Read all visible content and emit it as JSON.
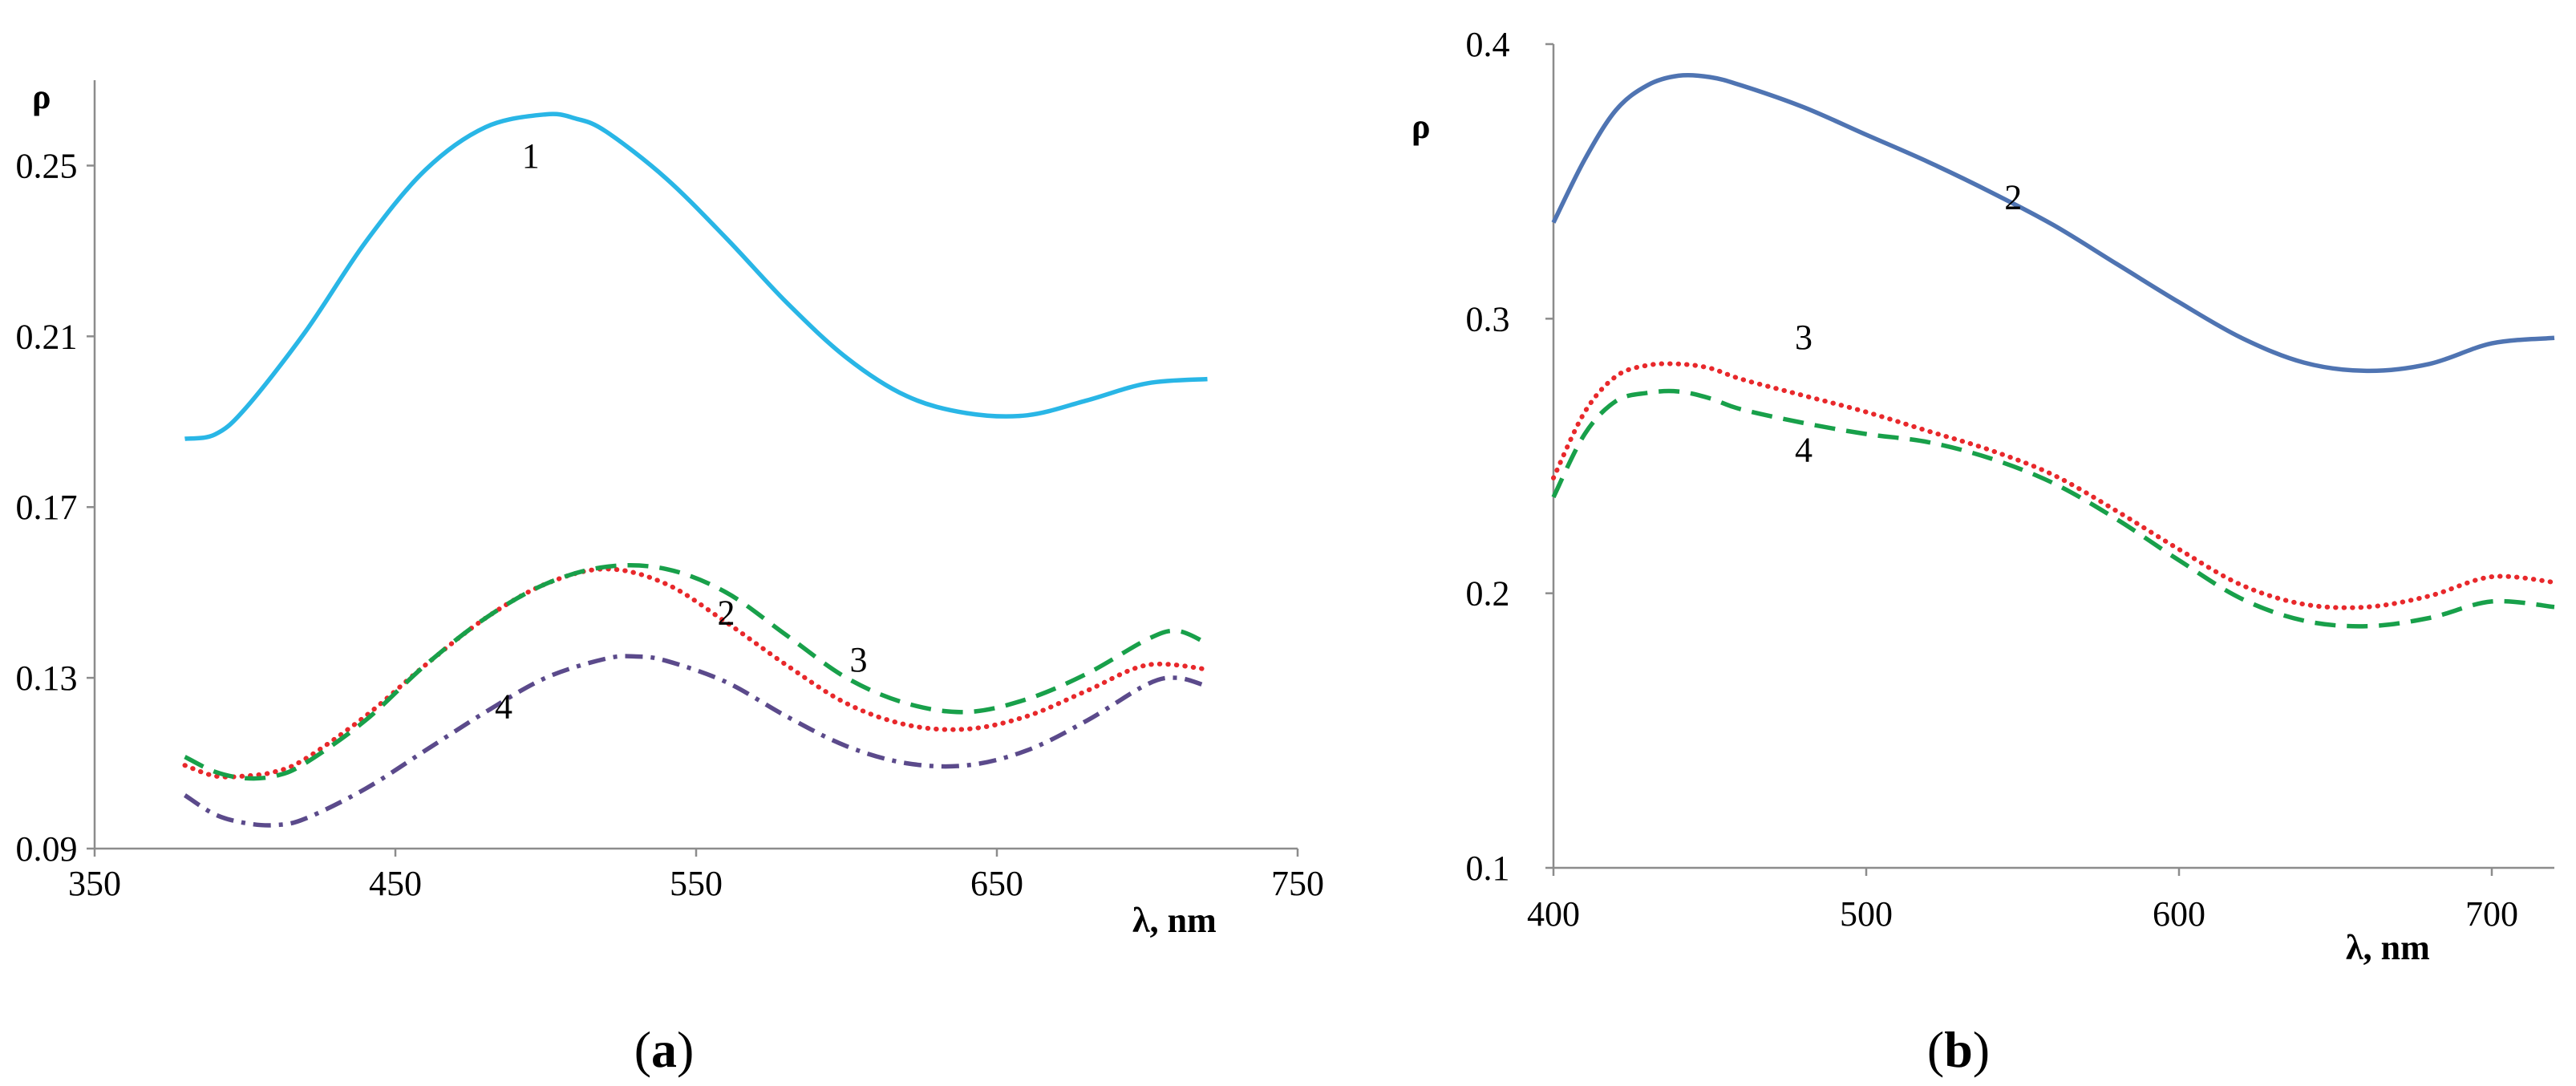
{
  "chart_data": [
    {
      "type": "line",
      "panel_label": "(a)",
      "panel_letter": "a",
      "ylabel": "ρ",
      "xlabel": "λ, nm",
      "xlim": [
        350,
        750
      ],
      "ylim": [
        0.09,
        0.27
      ],
      "xticks": [
        350,
        450,
        550,
        650,
        750
      ],
      "xtick_labels": [
        "350",
        "450",
        "550",
        "650",
        "750"
      ],
      "yticks": [
        0.09,
        0.13,
        0.17,
        0.21,
        0.25
      ],
      "ytick_labels": [
        "0.09",
        "0.13",
        "0.17",
        "0.21",
        "0.25"
      ],
      "grid": false,
      "series": [
        {
          "name": "1",
          "color": "#29b6e6",
          "style": "solid",
          "label_at": [
            495,
            0.2495
          ],
          "x": [
            380,
            390,
            400,
            420,
            440,
            460,
            480,
            500,
            510,
            520,
            540,
            560,
            580,
            600,
            620,
            640,
            660,
            680,
            700,
            720
          ],
          "y": [
            0.186,
            0.187,
            0.193,
            0.211,
            0.232,
            0.249,
            0.259,
            0.262,
            0.261,
            0.258,
            0.247,
            0.233,
            0.218,
            0.205,
            0.196,
            0.192,
            0.1915,
            0.195,
            0.199,
            0.2
          ]
        },
        {
          "name": "2",
          "color": "#e8282b",
          "style": "dotted",
          "label_at": [
            560,
            0.1425
          ],
          "x": [
            380,
            390,
            400,
            410,
            420,
            440,
            460,
            480,
            500,
            520,
            540,
            560,
            580,
            600,
            620,
            640,
            660,
            680,
            700,
            720
          ],
          "y": [
            0.1095,
            0.107,
            0.107,
            0.108,
            0.111,
            0.121,
            0.133,
            0.144,
            0.152,
            0.1555,
            0.152,
            0.143,
            0.133,
            0.124,
            0.119,
            0.118,
            0.121,
            0.127,
            0.133,
            0.132
          ]
        },
        {
          "name": "3",
          "color": "#18a04a",
          "style": "dashed",
          "label_at": [
            604,
            0.1315
          ],
          "x": [
            380,
            390,
            400,
            410,
            420,
            440,
            460,
            480,
            500,
            520,
            540,
            560,
            580,
            600,
            620,
            640,
            660,
            680,
            700,
            710,
            720
          ],
          "y": [
            0.1115,
            0.108,
            0.1065,
            0.107,
            0.11,
            0.12,
            0.133,
            0.144,
            0.152,
            0.156,
            0.1555,
            0.15,
            0.14,
            0.13,
            0.124,
            0.122,
            0.125,
            0.131,
            0.139,
            0.141,
            0.138
          ]
        },
        {
          "name": "4",
          "color": "#5b4a8b",
          "style": "dashdot",
          "label_at": [
            486,
            0.1205
          ],
          "x": [
            380,
            390,
            400,
            410,
            420,
            440,
            460,
            480,
            500,
            520,
            530,
            540,
            560,
            580,
            600,
            620,
            640,
            660,
            680,
            700,
            710,
            720
          ],
          "y": [
            0.1025,
            0.098,
            0.096,
            0.0955,
            0.097,
            0.104,
            0.113,
            0.122,
            0.13,
            0.1345,
            0.135,
            0.134,
            0.129,
            0.121,
            0.114,
            0.11,
            0.1095,
            0.113,
            0.12,
            0.1285,
            0.13,
            0.128
          ]
        }
      ]
    },
    {
      "type": "line",
      "panel_label": "(b)",
      "panel_letter": "b",
      "ylabel": "ρ",
      "xlabel": "λ, nm",
      "xlim": [
        400,
        720
      ],
      "ylim": [
        0.1,
        0.4
      ],
      "xticks": [
        400,
        500,
        600,
        700
      ],
      "xtick_labels": [
        "400",
        "500",
        "600",
        "700"
      ],
      "yticks": [
        0.1,
        0.2,
        0.3,
        0.4
      ],
      "ytick_labels": [
        "0.1",
        "0.2",
        "0.3",
        "0.4"
      ],
      "grid": false,
      "series": [
        {
          "name": "2",
          "color": "#4f74b2",
          "style": "solid",
          "label_at": [
            547,
            0.34
          ],
          "x": [
            400,
            410,
            420,
            430,
            440,
            450,
            460,
            480,
            500,
            520,
            540,
            560,
            580,
            600,
            620,
            640,
            660,
            680,
            700,
            720
          ],
          "y": [
            0.335,
            0.358,
            0.376,
            0.385,
            0.3885,
            0.388,
            0.385,
            0.377,
            0.367,
            0.357,
            0.346,
            0.334,
            0.32,
            0.306,
            0.293,
            0.284,
            0.281,
            0.2835,
            0.291,
            0.293
          ]
        },
        {
          "name": "3",
          "color": "#e8282b",
          "style": "dotted",
          "label_at": [
            480,
            0.289
          ],
          "x": [
            400,
            410,
            420,
            430,
            440,
            450,
            460,
            480,
            500,
            520,
            540,
            560,
            580,
            600,
            620,
            640,
            660,
            680,
            700,
            720
          ],
          "y": [
            0.242,
            0.266,
            0.279,
            0.283,
            0.2835,
            0.282,
            0.278,
            0.272,
            0.266,
            0.259,
            0.252,
            0.243,
            0.23,
            0.216,
            0.203,
            0.196,
            0.195,
            0.199,
            0.206,
            0.204
          ]
        },
        {
          "name": "4",
          "color": "#18a04a",
          "style": "dashed",
          "label_at": [
            480,
            0.248
          ],
          "x": [
            400,
            410,
            420,
            430,
            440,
            450,
            460,
            480,
            500,
            520,
            540,
            560,
            580,
            600,
            620,
            640,
            660,
            680,
            700,
            720
          ],
          "y": [
            0.235,
            0.258,
            0.27,
            0.273,
            0.2735,
            0.271,
            0.267,
            0.262,
            0.258,
            0.255,
            0.249,
            0.24,
            0.227,
            0.212,
            0.198,
            0.19,
            0.188,
            0.191,
            0.197,
            0.195
          ]
        }
      ]
    }
  ]
}
